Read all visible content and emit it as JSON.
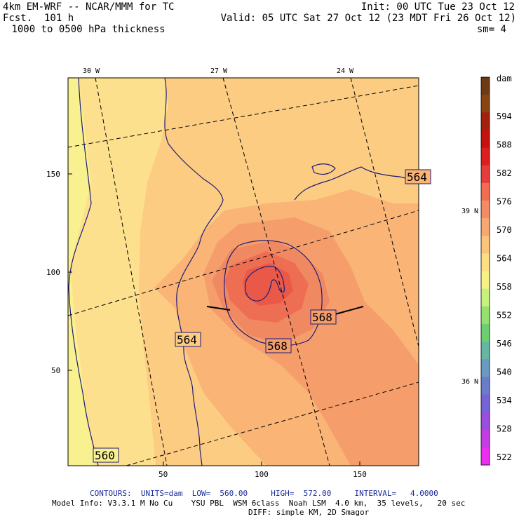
{
  "header": {
    "model": "4km EM-WRF -- NCAR/MMM for TC",
    "forecast": "Fcst.  101 h",
    "field": " 1000 to 0500 hPa thickness",
    "init": "Init: 00 UTC Tue 23 Oct 12",
    "valid": "Valid: 05 UTC Sat 27 Oct 12 (23 MDT Fri 26 Oct 12)",
    "smoothing": "sm= 4"
  },
  "map": {
    "lon_labels": [
      "30 W",
      "27 W",
      "24 W"
    ],
    "lat_labels": [
      "39 N",
      "36 N"
    ],
    "y_ticks": [
      "150",
      "100",
      "50"
    ],
    "x_ticks": [
      "50",
      "100",
      "150"
    ],
    "contour_labels": [
      "564",
      "564",
      "568",
      "568",
      "560"
    ]
  },
  "colorbar": {
    "units": "dam",
    "levels": [
      "594",
      "588",
      "582",
      "576",
      "570",
      "564",
      "558",
      "552",
      "546",
      "540",
      "534",
      "528",
      "522"
    ],
    "colors": [
      "#6e3a14",
      "#8a4416",
      "#a4200e",
      "#c41210",
      "#dc1e1e",
      "#e63c3c",
      "#f06c52",
      "#f28c64",
      "#f7a870",
      "#fcc478",
      "#fdde80",
      "#f7f286",
      "#c8f07c",
      "#96e070",
      "#6cd070",
      "#66b6a4",
      "#6a9ac2",
      "#6a7ccc",
      "#7862d8",
      "#9a4ede",
      "#c43ce4",
      "#ec2cf2"
    ]
  },
  "fill_colors": {
    "ocean_main": "#fccc82",
    "ocean_light": "#fde08e",
    "edge": "#f9f190",
    "band_564": "#f9b476",
    "core_566": "#f59e6c",
    "core_568": "#f08862",
    "core_570": "#ee6e54",
    "core_572": "#ea5848",
    "contour": "#1d1d7a"
  },
  "footer": {
    "contours": "CONTOURS:  UNITS=dam  LOW=  560.00     HIGH=  572.00     INTERVAL=   4.0000",
    "model_info": "Model Info: V3.3.1 M No Cu    YSU PBL  WSM 6class  Noah LSM  4.0 km,  35 levels,   20 sec",
    "diff": "DIFF: simple KM, 2D Smagor"
  }
}
